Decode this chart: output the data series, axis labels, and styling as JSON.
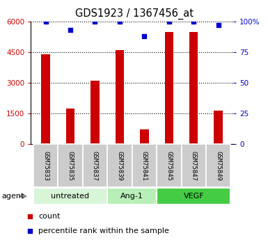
{
  "title": "GDS1923 / 1367456_at",
  "samples": [
    "GSM75833",
    "GSM75835",
    "GSM75837",
    "GSM75839",
    "GSM75841",
    "GSM75845",
    "GSM75847",
    "GSM75849"
  ],
  "counts": [
    4400,
    1750,
    3100,
    4600,
    700,
    5500,
    5500,
    1650
  ],
  "percentiles": [
    100,
    93,
    100,
    100,
    88,
    100,
    100,
    97
  ],
  "groups": [
    {
      "label": "untreated",
      "start": 0,
      "end": 3,
      "color": "#d8f5d8"
    },
    {
      "label": "Ang-1",
      "start": 3,
      "end": 5,
      "color": "#b8efb8"
    },
    {
      "label": "VEGF",
      "start": 5,
      "end": 8,
      "color": "#44cc44"
    }
  ],
  "bar_color": "#cc0000",
  "dot_color": "#0000cc",
  "ylim_left": [
    0,
    6000
  ],
  "ylim_right": [
    0,
    100
  ],
  "yticks_left": [
    0,
    1500,
    3000,
    4500,
    6000
  ],
  "ytick_labels_left": [
    "0",
    "1500",
    "3000",
    "4500",
    "6000"
  ],
  "yticks_right": [
    0,
    25,
    50,
    75,
    100
  ],
  "ytick_labels_right": [
    "0",
    "25",
    "50",
    "75",
    "100%"
  ],
  "left_tick_color": "#cc0000",
  "right_tick_color": "#0000cc",
  "sample_bg": "#cccccc",
  "agent_label": "agent",
  "legend_count": "count",
  "legend_percentile": "percentile rank within the sample"
}
